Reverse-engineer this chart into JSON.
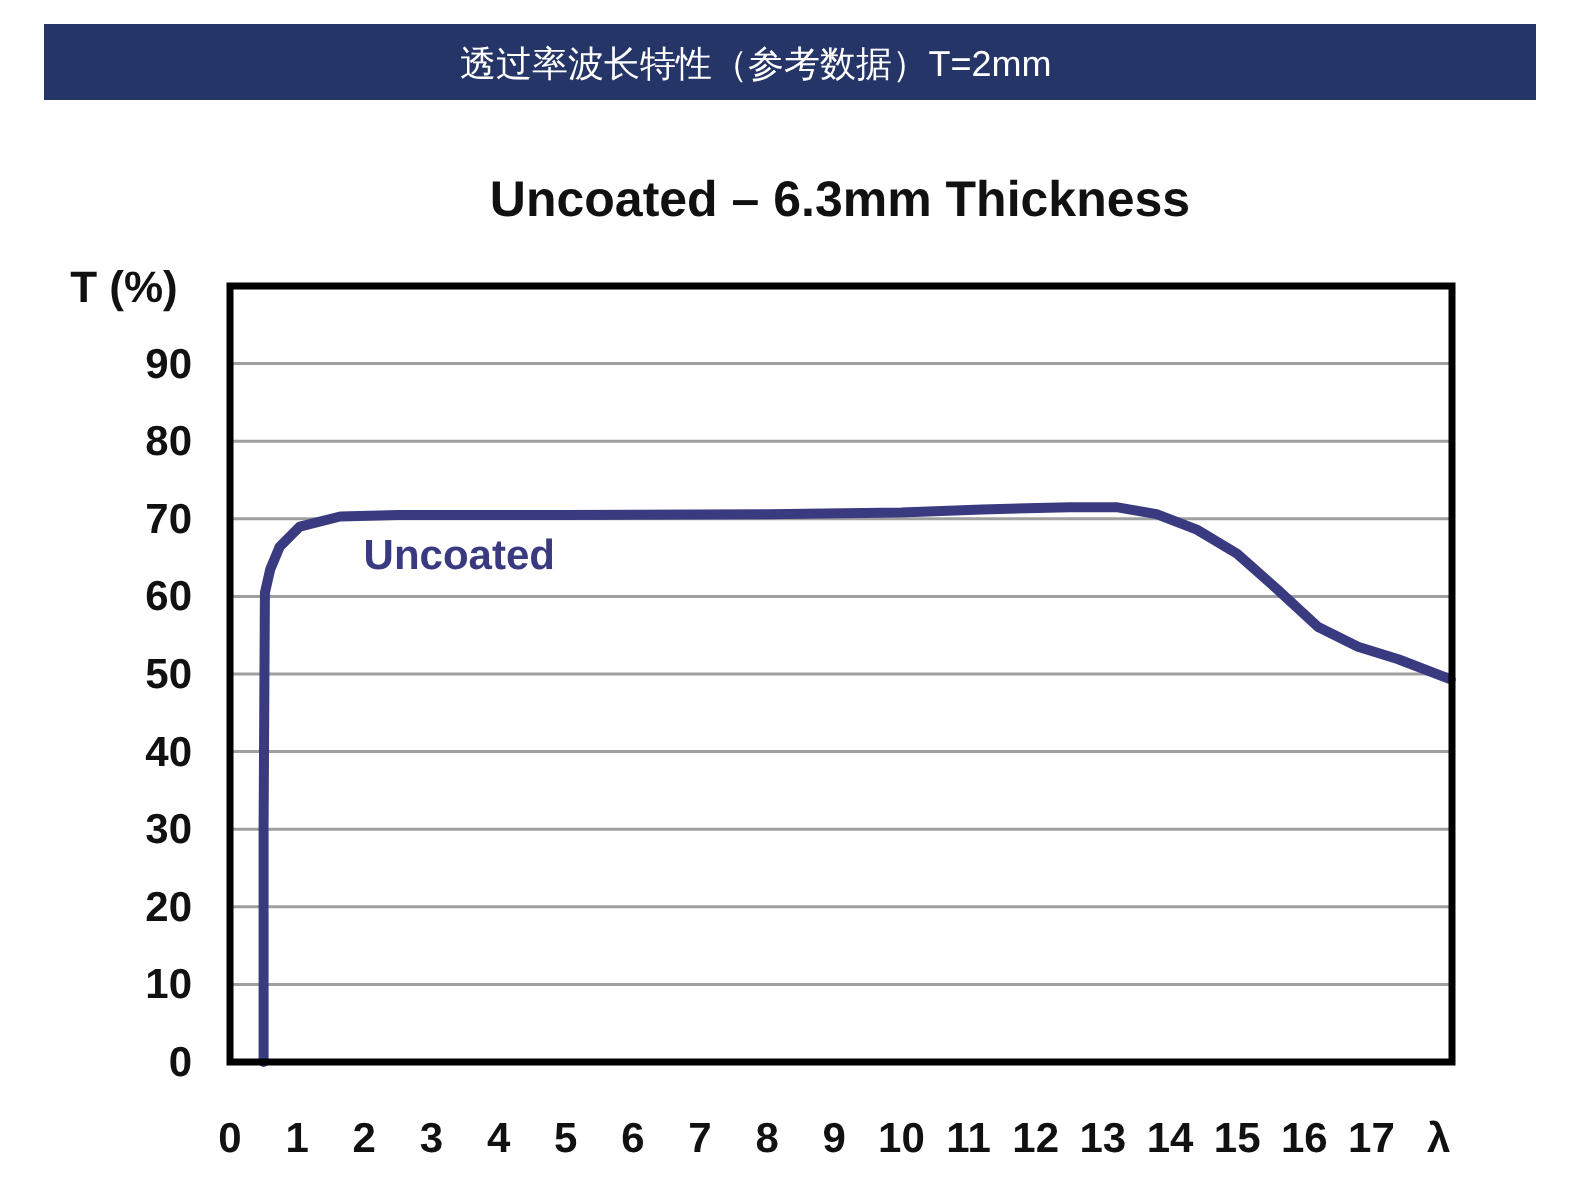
{
  "chart_data": {
    "type": "line",
    "title": "透过率波长特性（参考数据）T=2mm",
    "subtitle": "Uncoated – 6.3mm Thickness",
    "ylabel": "T (%)",
    "xlim": [
      0,
      18.2
    ],
    "xticks": [
      0,
      1,
      2,
      3,
      4,
      5,
      6,
      7,
      8,
      9,
      10,
      11,
      12,
      13,
      14,
      15,
      16,
      17,
      {
        "value": 18,
        "label": "λ"
      }
    ],
    "ylim": [
      0,
      100
    ],
    "yticks": [
      0,
      10,
      20,
      30,
      40,
      50,
      60,
      70,
      80,
      90
    ],
    "grid": "y",
    "series": [
      {
        "name": "Uncoated",
        "color": "#3a3a80",
        "x": [
          0.5,
          0.5,
          0.52,
          0.6,
          0.74,
          1.04,
          1.64,
          2.5,
          5,
          8,
          10,
          11.2,
          12.5,
          13.2,
          13.8,
          14.4,
          15,
          15.6,
          16.2,
          16.8,
          17.4,
          18.18
        ],
        "values": [
          0,
          30,
          60.5,
          63.5,
          66.4,
          69,
          70.3,
          70.5,
          70.5,
          70.6,
          70.8,
          71.2,
          71.5,
          71.5,
          70.6,
          68.6,
          65.5,
          60.9,
          56.1,
          53.5,
          51.9,
          49.3
        ]
      }
    ]
  }
}
